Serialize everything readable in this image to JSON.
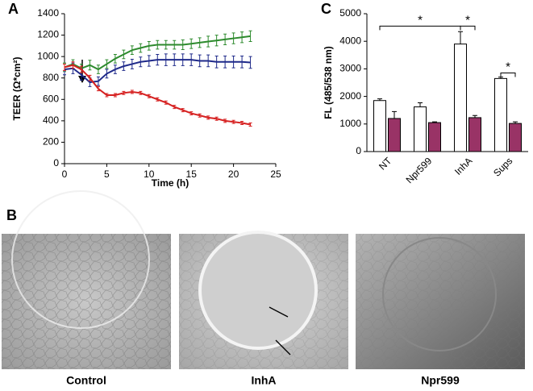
{
  "panel_labels": [
    "A",
    "B",
    "C"
  ],
  "chart_data": [
    {
      "type": "line",
      "y_label": "TEER (Ω*cm²)",
      "x_label": "Time (h)",
      "x": [
        0,
        1,
        2,
        3,
        4,
        5,
        6,
        7,
        8,
        9,
        10,
        11,
        12,
        13,
        14,
        15,
        16,
        17,
        18,
        19,
        20,
        21,
        22
      ],
      "xlim": [
        0,
        25
      ],
      "xticks": [
        0,
        5,
        10,
        15,
        20,
        25
      ],
      "ylim": [
        0,
        1400
      ],
      "yticks": [
        0,
        200,
        400,
        600,
        800,
        1000,
        1200,
        1400
      ],
      "grid": false,
      "series": [
        {
          "color": "#2e8b2e",
          "values": [
            900,
            930,
            890,
            920,
            880,
            930,
            980,
            1020,
            1060,
            1080,
            1100,
            1110,
            1110,
            1110,
            1110,
            1120,
            1130,
            1140,
            1150,
            1160,
            1170,
            1180,
            1190
          ],
          "errors": [
            40,
            40,
            40,
            45,
            40,
            40,
            40,
            40,
            40,
            40,
            40,
            40,
            40,
            40,
            45,
            45,
            45,
            50,
            50,
            50,
            50,
            50,
            50
          ]
        },
        {
          "color": "#1f2a8a",
          "values": [
            880,
            890,
            830,
            760,
            770,
            840,
            880,
            910,
            930,
            950,
            960,
            970,
            970,
            970,
            970,
            970,
            960,
            960,
            950,
            950,
            950,
            950,
            945
          ],
          "errors": [
            50,
            50,
            50,
            40,
            40,
            40,
            40,
            40,
            45,
            45,
            50,
            50,
            55,
            55,
            55,
            55,
            55,
            55,
            55,
            55,
            55,
            55,
            55
          ]
        },
        {
          "color": "#d62020",
          "values": [
            900,
            920,
            880,
            800,
            700,
            640,
            640,
            660,
            670,
            660,
            630,
            600,
            570,
            530,
            500,
            470,
            450,
            430,
            420,
            400,
            390,
            380,
            365
          ],
          "errors": [
            30,
            30,
            30,
            25,
            20,
            15,
            15,
            15,
            15,
            15,
            15,
            15,
            15,
            15,
            15,
            15,
            15,
            15,
            15,
            15,
            15,
            15,
            15
          ]
        }
      ]
    },
    {
      "type": "bar",
      "y_label": "FL (485/538 nm)",
      "categories": [
        "NT",
        "Npr599",
        "InhA",
        "Sups"
      ],
      "ylim": [
        0,
        5000
      ],
      "yticks": [
        0,
        1000,
        2000,
        3000,
        4000,
        5000
      ],
      "grid": false,
      "series": [
        {
          "color": "#ffffff",
          "values": [
            1850,
            1620,
            3900,
            2650
          ],
          "errors": [
            60,
            150,
            450,
            50
          ]
        },
        {
          "color": "#993366",
          "values": [
            1200,
            1050,
            1230,
            1020
          ],
          "errors": [
            250,
            30,
            80,
            60
          ]
        }
      ],
      "annotations": [
        "*",
        "*",
        "*"
      ]
    }
  ],
  "images": [
    {
      "label": "Control"
    },
    {
      "label": "InhA"
    },
    {
      "label": "Npr599"
    }
  ]
}
